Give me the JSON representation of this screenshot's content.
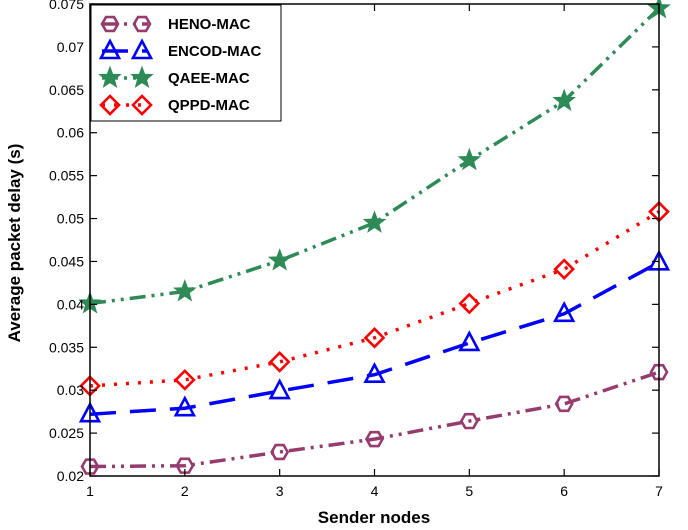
{
  "chart_data": {
    "type": "line",
    "xlabel": "Sender nodes",
    "ylabel": "Average packet delay (s)",
    "x": [
      1,
      2,
      3,
      4,
      5,
      6,
      7
    ],
    "xlim": [
      1,
      7
    ],
    "ylim": [
      0.02,
      0.075
    ],
    "xticks": [
      "1",
      "2",
      "3",
      "4",
      "5",
      "6",
      "7"
    ],
    "yticks": [
      "0.02",
      "0.025",
      "0.03",
      "0.035",
      "0.04",
      "0.045",
      "0.05",
      "0.055",
      "0.06",
      "0.065",
      "0.07",
      "0.075"
    ],
    "grid": false,
    "legend_position": "top-left",
    "series": [
      {
        "name": "HENO-MAC",
        "color": "#953b6e",
        "marker": "hexagon",
        "line_style": "dash-dot-dot",
        "values": [
          0.0211,
          0.0212,
          0.0228,
          0.0243,
          0.0264,
          0.0284,
          0.0321
        ]
      },
      {
        "name": "ENCOD-MAC",
        "color": "#0000ff",
        "marker": "triangle",
        "line_style": "long-dash",
        "values": [
          0.0272,
          0.0279,
          0.0299,
          0.0318,
          0.0355,
          0.0389,
          0.0449
        ]
      },
      {
        "name": "QAEE-MAC",
        "color": "#2e8b57",
        "marker": "star",
        "line_style": "dash-dot-dot",
        "values": [
          0.0401,
          0.0415,
          0.0451,
          0.0495,
          0.0568,
          0.0637,
          0.0745
        ]
      },
      {
        "name": "QPPD-MAC",
        "color": "#ff0000",
        "marker": "diamond",
        "line_style": "dotted",
        "values": [
          0.0305,
          0.0312,
          0.0333,
          0.0361,
          0.0401,
          0.0441,
          0.0508
        ]
      }
    ]
  }
}
